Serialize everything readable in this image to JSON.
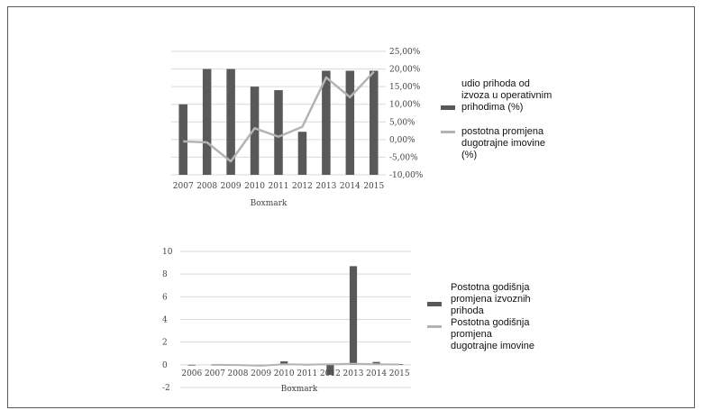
{
  "colors": {
    "bar": "#595959",
    "line": "#b3b3b3",
    "grid": "#d9d9d9",
    "axis": "#bfbfbf"
  },
  "chart_data": [
    {
      "type": "bar",
      "categories": [
        "2007",
        "2008",
        "2009",
        "2010",
        "2011",
        "2012",
        "2013",
        "2014",
        "2015"
      ],
      "series": [
        {
          "name": "udio prihoda od izvoza u operativnim prihodima (%)",
          "type": "bar",
          "axis": "left",
          "values": [
            10,
            20,
            20,
            15,
            14,
            2.2,
            19.5,
            19.5,
            19.5
          ]
        },
        {
          "name": "postotna promjena dugotrajne imovine (%)",
          "type": "line",
          "axis": "right",
          "values": [
            -0.5,
            -0.8,
            -6.2,
            3.2,
            0.8,
            3.6,
            17.6,
            12.0,
            19.2
          ]
        }
      ],
      "xlabel": "Boxmark",
      "ylim_left": [
        0,
        25
      ],
      "ylim": [
        -10,
        25
      ],
      "yticks": [
        "25,00%",
        "20,00%",
        "15,00%",
        "10,00%",
        "5,00%",
        "0,00%",
        "-5,00%",
        "-10,00%"
      ],
      "grid": true,
      "legend_position": "right",
      "legend": [
        [
          "udio prihoda od",
          "izvoza u operativnim",
          "prihodima (%)"
        ],
        [
          "postotna promjena",
          "dugotrajne imovine",
          "(%)"
        ]
      ]
    },
    {
      "type": "bar",
      "categories": [
        "2006",
        "2007",
        "2008",
        "2009",
        "2010",
        "2011",
        "2012",
        "2013",
        "2014",
        "2015"
      ],
      "series": [
        {
          "name": "Postotna godišnja promjena izvoznih prihoda",
          "type": "bar",
          "values": [
            0,
            0.02,
            -0.02,
            -0.05,
            0.3,
            -0.04,
            -0.9,
            8.7,
            0.25,
            0.05
          ]
        },
        {
          "name": "Postotna godišnja promjena dugotrajne imovine",
          "type": "line",
          "values": [
            null,
            0.0,
            -0.02,
            -0.08,
            0.05,
            0.02,
            0.05,
            0.1,
            0.05,
            0.03
          ]
        }
      ],
      "xlabel": "Boxmark",
      "ylim": [
        -2,
        10
      ],
      "yticks": [
        "10",
        "8",
        "6",
        "4",
        "2",
        "0",
        "-2"
      ],
      "grid": true,
      "legend_position": "right",
      "legend": [
        [
          "Postotna godišnja",
          "promjena izvoznih",
          "prihoda"
        ],
        [
          "Postotna godišnja",
          "promjena",
          "dugotrajne imovine"
        ]
      ]
    }
  ]
}
